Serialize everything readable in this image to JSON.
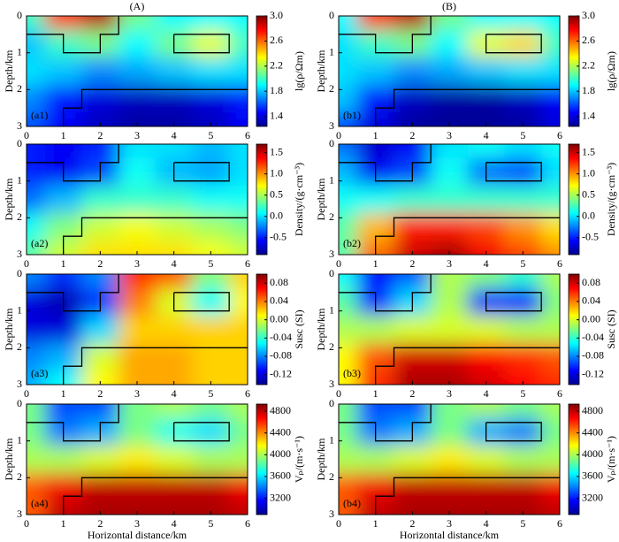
{
  "column_titles": [
    "(A)",
    "(B)"
  ],
  "outline": [
    {
      "x": [
        0,
        1,
        1,
        2,
        2,
        2.5,
        2.5
      ],
      "y": [
        0.5,
        0.5,
        1,
        1,
        0.5,
        0.5,
        0
      ]
    },
    {
      "x": [
        4,
        5.5,
        5.5,
        4,
        4
      ],
      "y": [
        0.5,
        0.5,
        1,
        1,
        0.5
      ]
    },
    {
      "x": [
        1,
        1,
        1.5,
        1.5,
        6
      ],
      "y": [
        3,
        2.5,
        2.5,
        2,
        2
      ]
    }
  ],
  "chart_data": [
    {
      "type": "contour",
      "label": "(a1)",
      "ylabel": "Depth/km",
      "xlim": [
        0,
        6
      ],
      "xticks": [
        0,
        1,
        2,
        3,
        4,
        5,
        6
      ],
      "ylim": [
        0,
        3
      ],
      "yticks": [
        0,
        1,
        2,
        3
      ],
      "x": [
        0,
        1,
        2,
        3,
        4,
        5,
        6
      ],
      "y": [
        0,
        0.75,
        1.5,
        2.25,
        3
      ],
      "z": [
        [
          2.0,
          2.7,
          2.9,
          2.1,
          1.9,
          1.9,
          1.9
        ],
        [
          1.8,
          2.0,
          2.1,
          1.9,
          2.1,
          2.3,
          2.0
        ],
        [
          1.85,
          1.8,
          1.7,
          1.75,
          1.8,
          1.85,
          1.85
        ],
        [
          1.7,
          1.5,
          1.4,
          1.35,
          1.35,
          1.4,
          1.5
        ],
        [
          1.6,
          1.45,
          1.35,
          1.3,
          1.3,
          1.35,
          1.45
        ]
      ],
      "colorbar": {
        "label": "lg(ρ/Ωm)",
        "clim": [
          1.24,
          3.0
        ],
        "ticks": [
          1.4,
          1.8,
          2.2,
          2.6,
          {
            "value": 3,
            "label": "3.0"
          }
        ]
      }
    },
    {
      "type": "contour",
      "label": "(a2)",
      "ylabel": "Depth/km",
      "xlim": [
        0,
        6
      ],
      "xticks": [
        0,
        1,
        2,
        3,
        4,
        5,
        6
      ],
      "ylim": [
        0,
        3
      ],
      "yticks": [
        0,
        1,
        2,
        3
      ],
      "x": [
        0,
        1,
        2,
        3,
        4,
        5,
        6
      ],
      "y": [
        0,
        0.75,
        1.5,
        2.25,
        3
      ],
      "z": [
        [
          -0.5,
          -0.6,
          -0.5,
          0.0,
          0.0,
          -0.1,
          0.0
        ],
        [
          -0.5,
          -0.6,
          -0.4,
          0.1,
          -0.1,
          -0.15,
          0.0
        ],
        [
          -0.3,
          -0.1,
          0.2,
          0.2,
          0.2,
          0.1,
          0.1
        ],
        [
          0.1,
          0.4,
          0.6,
          0.7,
          0.6,
          0.5,
          0.4
        ],
        [
          0.3,
          0.6,
          0.8,
          0.8,
          0.8,
          0.7,
          0.6
        ]
      ],
      "colorbar": {
        "label": "Density/(g·cm⁻³)",
        "clim": [
          -0.9,
          1.7
        ],
        "ticks": [
          -0.5,
          {
            "value": 0,
            "label": "0.0"
          },
          0.5,
          {
            "value": 1,
            "label": "1.0"
          },
          1.5
        ]
      }
    },
    {
      "type": "contour",
      "label": "(a3)",
      "ylabel": "Depth/km",
      "xlim": [
        0,
        6
      ],
      "xticks": [
        0,
        1,
        2,
        3,
        4,
        5,
        6
      ],
      "ylim": [
        0,
        3
      ],
      "yticks": [
        0,
        1,
        2,
        3
      ],
      "x": [
        0,
        1,
        2,
        3,
        4,
        5,
        6
      ],
      "y": [
        0,
        0.75,
        1.5,
        2.25,
        3
      ],
      "z": [
        [
          -0.08,
          -0.1,
          -0.08,
          0.06,
          0.05,
          -0.02,
          0.02
        ],
        [
          -0.12,
          -0.13,
          -0.1,
          0.04,
          0.0,
          -0.05,
          0.01
        ],
        [
          -0.12,
          -0.12,
          -0.06,
          0.02,
          0.02,
          0.02,
          0.02
        ],
        [
          -0.08,
          -0.07,
          0.0,
          0.03,
          0.03,
          0.02,
          0.02
        ],
        [
          -0.07,
          -0.05,
          0.01,
          0.03,
          0.03,
          0.02,
          0.02
        ]
      ],
      "colorbar": {
        "label": "Susc (SI)",
        "clim": [
          -0.142,
          0.1
        ],
        "ticks": [
          0.08,
          0.04,
          {
            "value": 0,
            "label": "0.00"
          },
          -0.04,
          -0.08,
          -0.12
        ]
      }
    },
    {
      "type": "contour",
      "label": "(a4)",
      "ylabel": "Depth/km",
      "xlabel": "Horizontal distance/km",
      "xlim": [
        0,
        6
      ],
      "xticks": [
        0,
        1,
        2,
        3,
        4,
        5,
        6
      ],
      "ylim": [
        0,
        3
      ],
      "yticks": [
        0,
        1,
        2,
        3
      ],
      "x": [
        0,
        1,
        2,
        3,
        4,
        5,
        6
      ],
      "y": [
        0,
        0.75,
        1.5,
        2.25,
        3
      ],
      "z": [
        [
          3900,
          3300,
          3300,
          3900,
          4000,
          3900,
          4000
        ],
        [
          3900,
          3400,
          3500,
          3900,
          3700,
          3600,
          3900
        ],
        [
          4000,
          4000,
          4100,
          4200,
          4100,
          4000,
          4000
        ],
        [
          4500,
          4700,
          4800,
          4800,
          4800,
          4800,
          4700
        ],
        [
          4500,
          4800,
          4850,
          4850,
          4850,
          4850,
          4800
        ]
      ],
      "colorbar": {
        "label": "Vₚ/(m·s⁻¹)",
        "clim": [
          2900,
          4930
        ],
        "ticks": [
          3200,
          3600,
          4000,
          4400,
          4800
        ]
      }
    },
    {
      "type": "contour",
      "label": "(b1)",
      "ylabel": "Depth/km",
      "xlim": [
        0,
        6
      ],
      "xticks": [
        0,
        1,
        2,
        3,
        4,
        5,
        6
      ],
      "ylim": [
        0,
        3
      ],
      "yticks": [
        0,
        1,
        2,
        3
      ],
      "x": [
        0,
        1,
        2,
        3,
        4,
        5,
        6
      ],
      "y": [
        0,
        0.75,
        1.5,
        2.25,
        3
      ],
      "z": [
        [
          1.9,
          2.7,
          2.9,
          2.1,
          1.9,
          1.9,
          1.9
        ],
        [
          1.85,
          2.0,
          2.1,
          1.9,
          2.3,
          2.4,
          2.0
        ],
        [
          1.85,
          1.8,
          1.7,
          1.75,
          1.8,
          1.85,
          1.85
        ],
        [
          1.8,
          1.5,
          1.35,
          1.3,
          1.3,
          1.35,
          1.45
        ],
        [
          1.6,
          1.4,
          1.3,
          1.28,
          1.28,
          1.3,
          1.4
        ]
      ],
      "colorbar": {
        "label": "lg(ρ/Ωm)",
        "clim": [
          1.24,
          3.0
        ],
        "ticks": [
          1.4,
          1.8,
          2.2,
          2.6,
          {
            "value": 3,
            "label": "3.0"
          }
        ]
      }
    },
    {
      "type": "contour",
      "label": "(b2)",
      "ylabel": "Depth/km",
      "xlim": [
        0,
        6
      ],
      "xticks": [
        0,
        1,
        2,
        3,
        4,
        5,
        6
      ],
      "ylim": [
        0,
        3
      ],
      "yticks": [
        0,
        1,
        2,
        3
      ],
      "x": [
        0,
        1,
        2,
        3,
        4,
        5,
        6
      ],
      "y": [
        0,
        0.75,
        1.5,
        2.25,
        3
      ],
      "z": [
        [
          -0.3,
          -0.7,
          -0.6,
          0.0,
          0.1,
          0.0,
          0.1
        ],
        [
          -0.1,
          -0.6,
          -0.4,
          0.1,
          -0.3,
          -0.4,
          0.0
        ],
        [
          0.1,
          0.1,
          0.2,
          0.2,
          0.2,
          0.2,
          0.2
        ],
        [
          0.3,
          0.9,
          1.3,
          1.3,
          1.2,
          1.0,
          0.8
        ],
        [
          0.3,
          1.1,
          1.5,
          1.6,
          1.4,
          1.2,
          1.0
        ]
      ],
      "colorbar": {
        "label": "Density/(g·cm⁻³)",
        "clim": [
          -0.9,
          1.7
        ],
        "ticks": [
          -0.5,
          {
            "value": 0,
            "label": "0.0"
          },
          0.5,
          {
            "value": 1,
            "label": "1.0"
          },
          1.5
        ]
      }
    },
    {
      "type": "contour",
      "label": "(b3)",
      "ylabel": "Depth/km",
      "xlim": [
        0,
        6
      ],
      "xticks": [
        0,
        1,
        2,
        3,
        4,
        5,
        6
      ],
      "ylim": [
        0,
        3
      ],
      "yticks": [
        0,
        1,
        2,
        3
      ],
      "x": [
        0,
        1,
        2,
        3,
        4,
        5,
        6
      ],
      "y": [
        0,
        0.75,
        1.5,
        2.25,
        3
      ],
      "z": [
        [
          -0.05,
          -0.11,
          -0.09,
          -0.01,
          -0.02,
          -0.04,
          -0.01
        ],
        [
          -0.03,
          -0.1,
          -0.06,
          -0.01,
          -0.1,
          -0.11,
          -0.02
        ],
        [
          -0.01,
          -0.01,
          0.0,
          0.0,
          0.0,
          -0.01,
          -0.01
        ],
        [
          0.01,
          0.05,
          0.08,
          0.08,
          0.07,
          0.06,
          0.05
        ],
        [
          0.01,
          0.06,
          0.09,
          0.09,
          0.08,
          0.07,
          0.06
        ]
      ],
      "colorbar": {
        "label": "Susc (SI)",
        "clim": [
          -0.142,
          0.1
        ],
        "ticks": [
          0.08,
          0.04,
          {
            "value": 0,
            "label": "0.00"
          },
          -0.04,
          -0.08,
          -0.12
        ]
      }
    },
    {
      "type": "contour",
      "label": "(b4)",
      "ylabel": "Depth/km",
      "xlabel": "Horizontal distance/km",
      "xlim": [
        0,
        6
      ],
      "xticks": [
        0,
        1,
        2,
        3,
        4,
        5,
        6
      ],
      "ylim": [
        0,
        3
      ],
      "yticks": [
        0,
        1,
        2,
        3
      ],
      "x": [
        0,
        1,
        2,
        3,
        4,
        5,
        6
      ],
      "y": [
        0,
        0.75,
        1.5,
        2.25,
        3
      ],
      "z": [
        [
          3900,
          3300,
          3300,
          3900,
          4000,
          3900,
          4000
        ],
        [
          3900,
          3400,
          3500,
          3900,
          3500,
          3400,
          3900
        ],
        [
          4000,
          4000,
          4100,
          4200,
          4100,
          4000,
          4000
        ],
        [
          4500,
          4700,
          4800,
          4800,
          4800,
          4800,
          4700
        ],
        [
          4500,
          4800,
          4850,
          4850,
          4850,
          4850,
          4800
        ]
      ],
      "colorbar": {
        "label": "Vₚ/(m·s⁻¹)",
        "clim": [
          2900,
          4930
        ],
        "ticks": [
          3200,
          3600,
          4000,
          4400,
          4800
        ]
      }
    }
  ]
}
